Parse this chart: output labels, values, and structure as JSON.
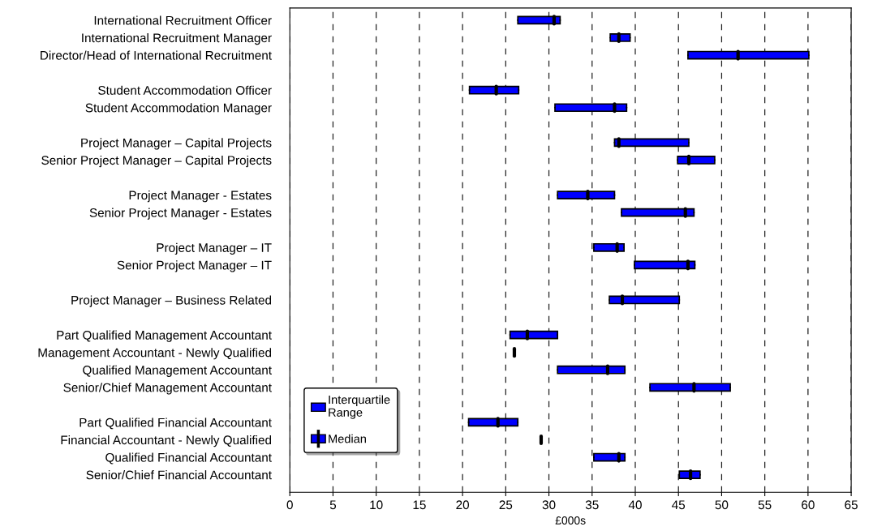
{
  "chart_data": {
    "type": "box",
    "orientation": "horizontal",
    "xlabel": "£000s",
    "categories": [
      "International Recruitment Officer",
      "International Recruitment Manager",
      "Director/Head of International Recruitment",
      null,
      "Student Accommodation Officer",
      "Student Accommodation Manager",
      null,
      "Project Manager – Capital Projects",
      "Senior Project Manager – Capital Projects",
      null,
      "Project Manager - Estates",
      "Senior Project Manager - Estates",
      null,
      "Project Manager – IT",
      "Senior Project Manager – IT",
      null,
      "Project Manager – Business Related",
      null,
      "Part Qualified Management Accountant",
      "Management Accountant - Newly Qualified",
      "Qualified Management Accountant",
      "Senior/Chief Management Accountant",
      null,
      "Part Qualified Financial Accountant",
      "Financial Accountant - Newly Qualified",
      "Qualified Financial Accountant",
      "Senior/Chief Financial Accountant"
    ],
    "series": [
      {
        "name": "Interquartile\nRange",
        "color": "#0000ff",
        "boxes": [
          {
            "low": 26.4,
            "q1": 26.4,
            "median": 30.6,
            "q3": 31.3,
            "high": 31.3
          },
          {
            "low": 37.1,
            "q1": 37.1,
            "median": 38.1,
            "q3": 39.4,
            "high": 39.4
          },
          {
            "low": 46.1,
            "q1": 46.1,
            "median": 51.9,
            "q3": 60.1,
            "high": 60.1
          },
          null,
          {
            "low": 20.8,
            "q1": 20.8,
            "median": 23.9,
            "q3": 26.5,
            "high": 26.5
          },
          {
            "low": 30.7,
            "q1": 30.7,
            "median": 37.6,
            "q3": 39.0,
            "high": 39.0
          },
          null,
          {
            "low": 37.6,
            "q1": 37.6,
            "median": 38.1,
            "q3": 46.2,
            "high": 46.2
          },
          {
            "low": 44.9,
            "q1": 44.9,
            "median": 46.2,
            "q3": 49.2,
            "high": 49.2
          },
          null,
          {
            "low": 31.0,
            "q1": 31.0,
            "median": 34.5,
            "q3": 37.6,
            "high": 37.6
          },
          {
            "low": 38.4,
            "q1": 38.4,
            "median": 45.8,
            "q3": 46.8,
            "high": 46.8
          },
          null,
          {
            "low": 35.2,
            "q1": 35.2,
            "median": 37.9,
            "q3": 38.7,
            "high": 38.7
          },
          {
            "low": 39.9,
            "q1": 39.9,
            "median": 46.1,
            "q3": 46.9,
            "high": 46.9
          },
          null,
          {
            "low": 37.0,
            "q1": 37.0,
            "median": 38.5,
            "q3": 45.1,
            "high": 45.1
          },
          null,
          {
            "low": 25.5,
            "q1": 25.5,
            "median": 27.5,
            "q3": 31.0,
            "high": 31.0
          },
          {
            "low": 26.0,
            "q1": 26.0,
            "median": 26.0,
            "q3": 26.0,
            "high": 26.0
          },
          {
            "low": 31.0,
            "q1": 31.0,
            "median": 36.8,
            "q3": 38.8,
            "high": 38.8
          },
          {
            "low": 41.7,
            "q1": 41.7,
            "median": 46.8,
            "q3": 51.0,
            "high": 51.0
          },
          null,
          {
            "low": 20.7,
            "q1": 20.7,
            "median": 24.1,
            "q3": 26.4,
            "high": 26.4
          },
          {
            "low": 29.1,
            "q1": 29.1,
            "median": 29.1,
            "q3": 29.1,
            "high": 29.1
          },
          {
            "low": 35.2,
            "q1": 35.2,
            "median": 38.1,
            "q3": 38.8,
            "high": 38.8
          },
          {
            "low": 45.1,
            "q1": 45.1,
            "median": 46.4,
            "q3": 47.5,
            "high": 47.5
          }
        ]
      }
    ],
    "annotations": [
      "Median"
    ],
    "xlim": [
      0,
      65
    ],
    "xticks": [
      0,
      5,
      10,
      15,
      20,
      25,
      30,
      35,
      40,
      45,
      50,
      55,
      60,
      65
    ],
    "grid": "x",
    "legend": "bottom left"
  }
}
